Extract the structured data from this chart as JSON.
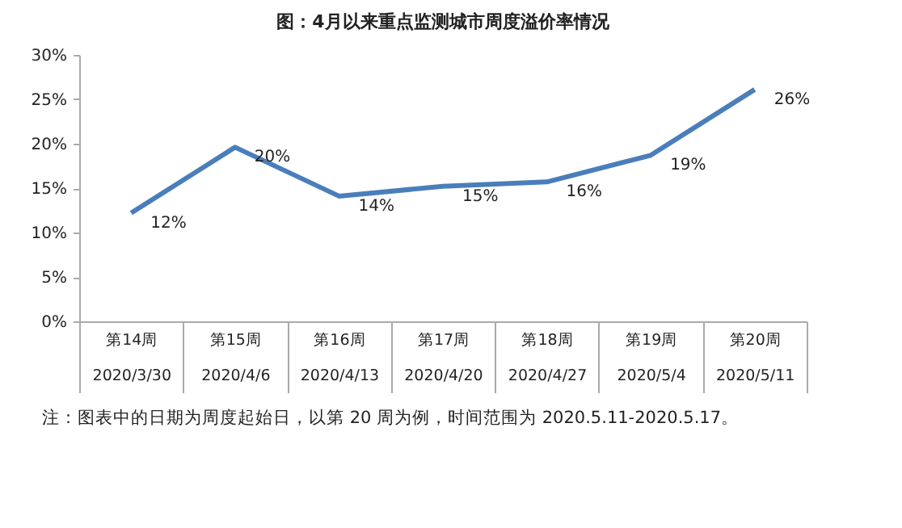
{
  "chart_data": {
    "type": "line",
    "title": "图：4月以来重点监测城市周度溢价率情况",
    "categories": [
      "第14周\n2020/3/30",
      "第15周\n2020/4/6",
      "第16周\n2020/4/13",
      "第17周\n2020/4/20",
      "第18周\n2020/4/27",
      "第19周\n2020/5/4",
      "第20周\n2020/5/11"
    ],
    "series": [
      {
        "color": "#4a7ebb",
        "values": [
          12.2,
          19.6,
          14.1,
          15.2,
          15.7,
          18.7,
          26.1
        ],
        "value_labels": [
          "12%",
          "20%",
          "14%",
          "15%",
          "16%",
          "19%",
          "26%"
        ]
      }
    ],
    "ylim": [
      0,
      30
    ],
    "yticks": [
      {
        "value": 0,
        "label": "0%"
      },
      {
        "value": 5,
        "label": "5%"
      },
      {
        "value": 10,
        "label": "10%"
      },
      {
        "value": 15,
        "label": "15%"
      },
      {
        "value": 20,
        "label": "20%"
      },
      {
        "value": 25,
        "label": "25%"
      },
      {
        "value": 30,
        "label": "30%"
      }
    ],
    "grid": false,
    "legend": false,
    "marker": "none",
    "line_style": "solid",
    "annotations": [
      "注：图表中的日期为周度起始日，以第 20 周为例，时间范围为 2020.5.11-2020.5.17。"
    ]
  }
}
